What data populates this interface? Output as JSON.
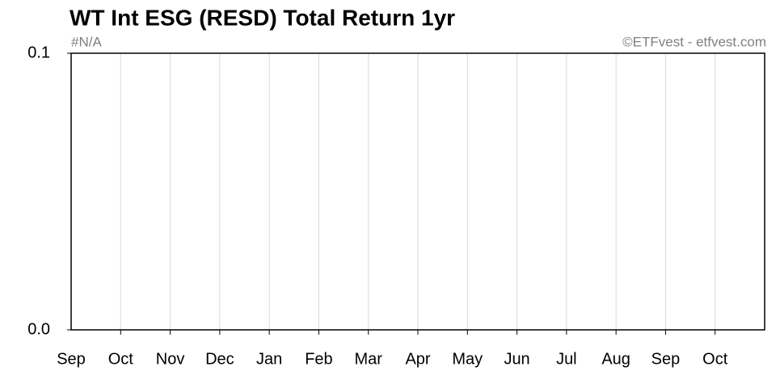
{
  "chart_data": {
    "type": "line",
    "title": "WT Int ESG (RESD) Total Return 1yr",
    "subtitle": "#N/A",
    "credit": "©ETFvest - etfvest.com",
    "categories": [
      "Sep",
      "Oct",
      "Nov",
      "Dec",
      "Jan",
      "Feb",
      "Mar",
      "Apr",
      "May",
      "Jun",
      "Jul",
      "Aug",
      "Sep",
      "Oct"
    ],
    "ylim": [
      0,
      0.1
    ],
    "yticks": [
      {
        "value": 0,
        "label": "0.0"
      },
      0.1
    ],
    "grid": true
  }
}
